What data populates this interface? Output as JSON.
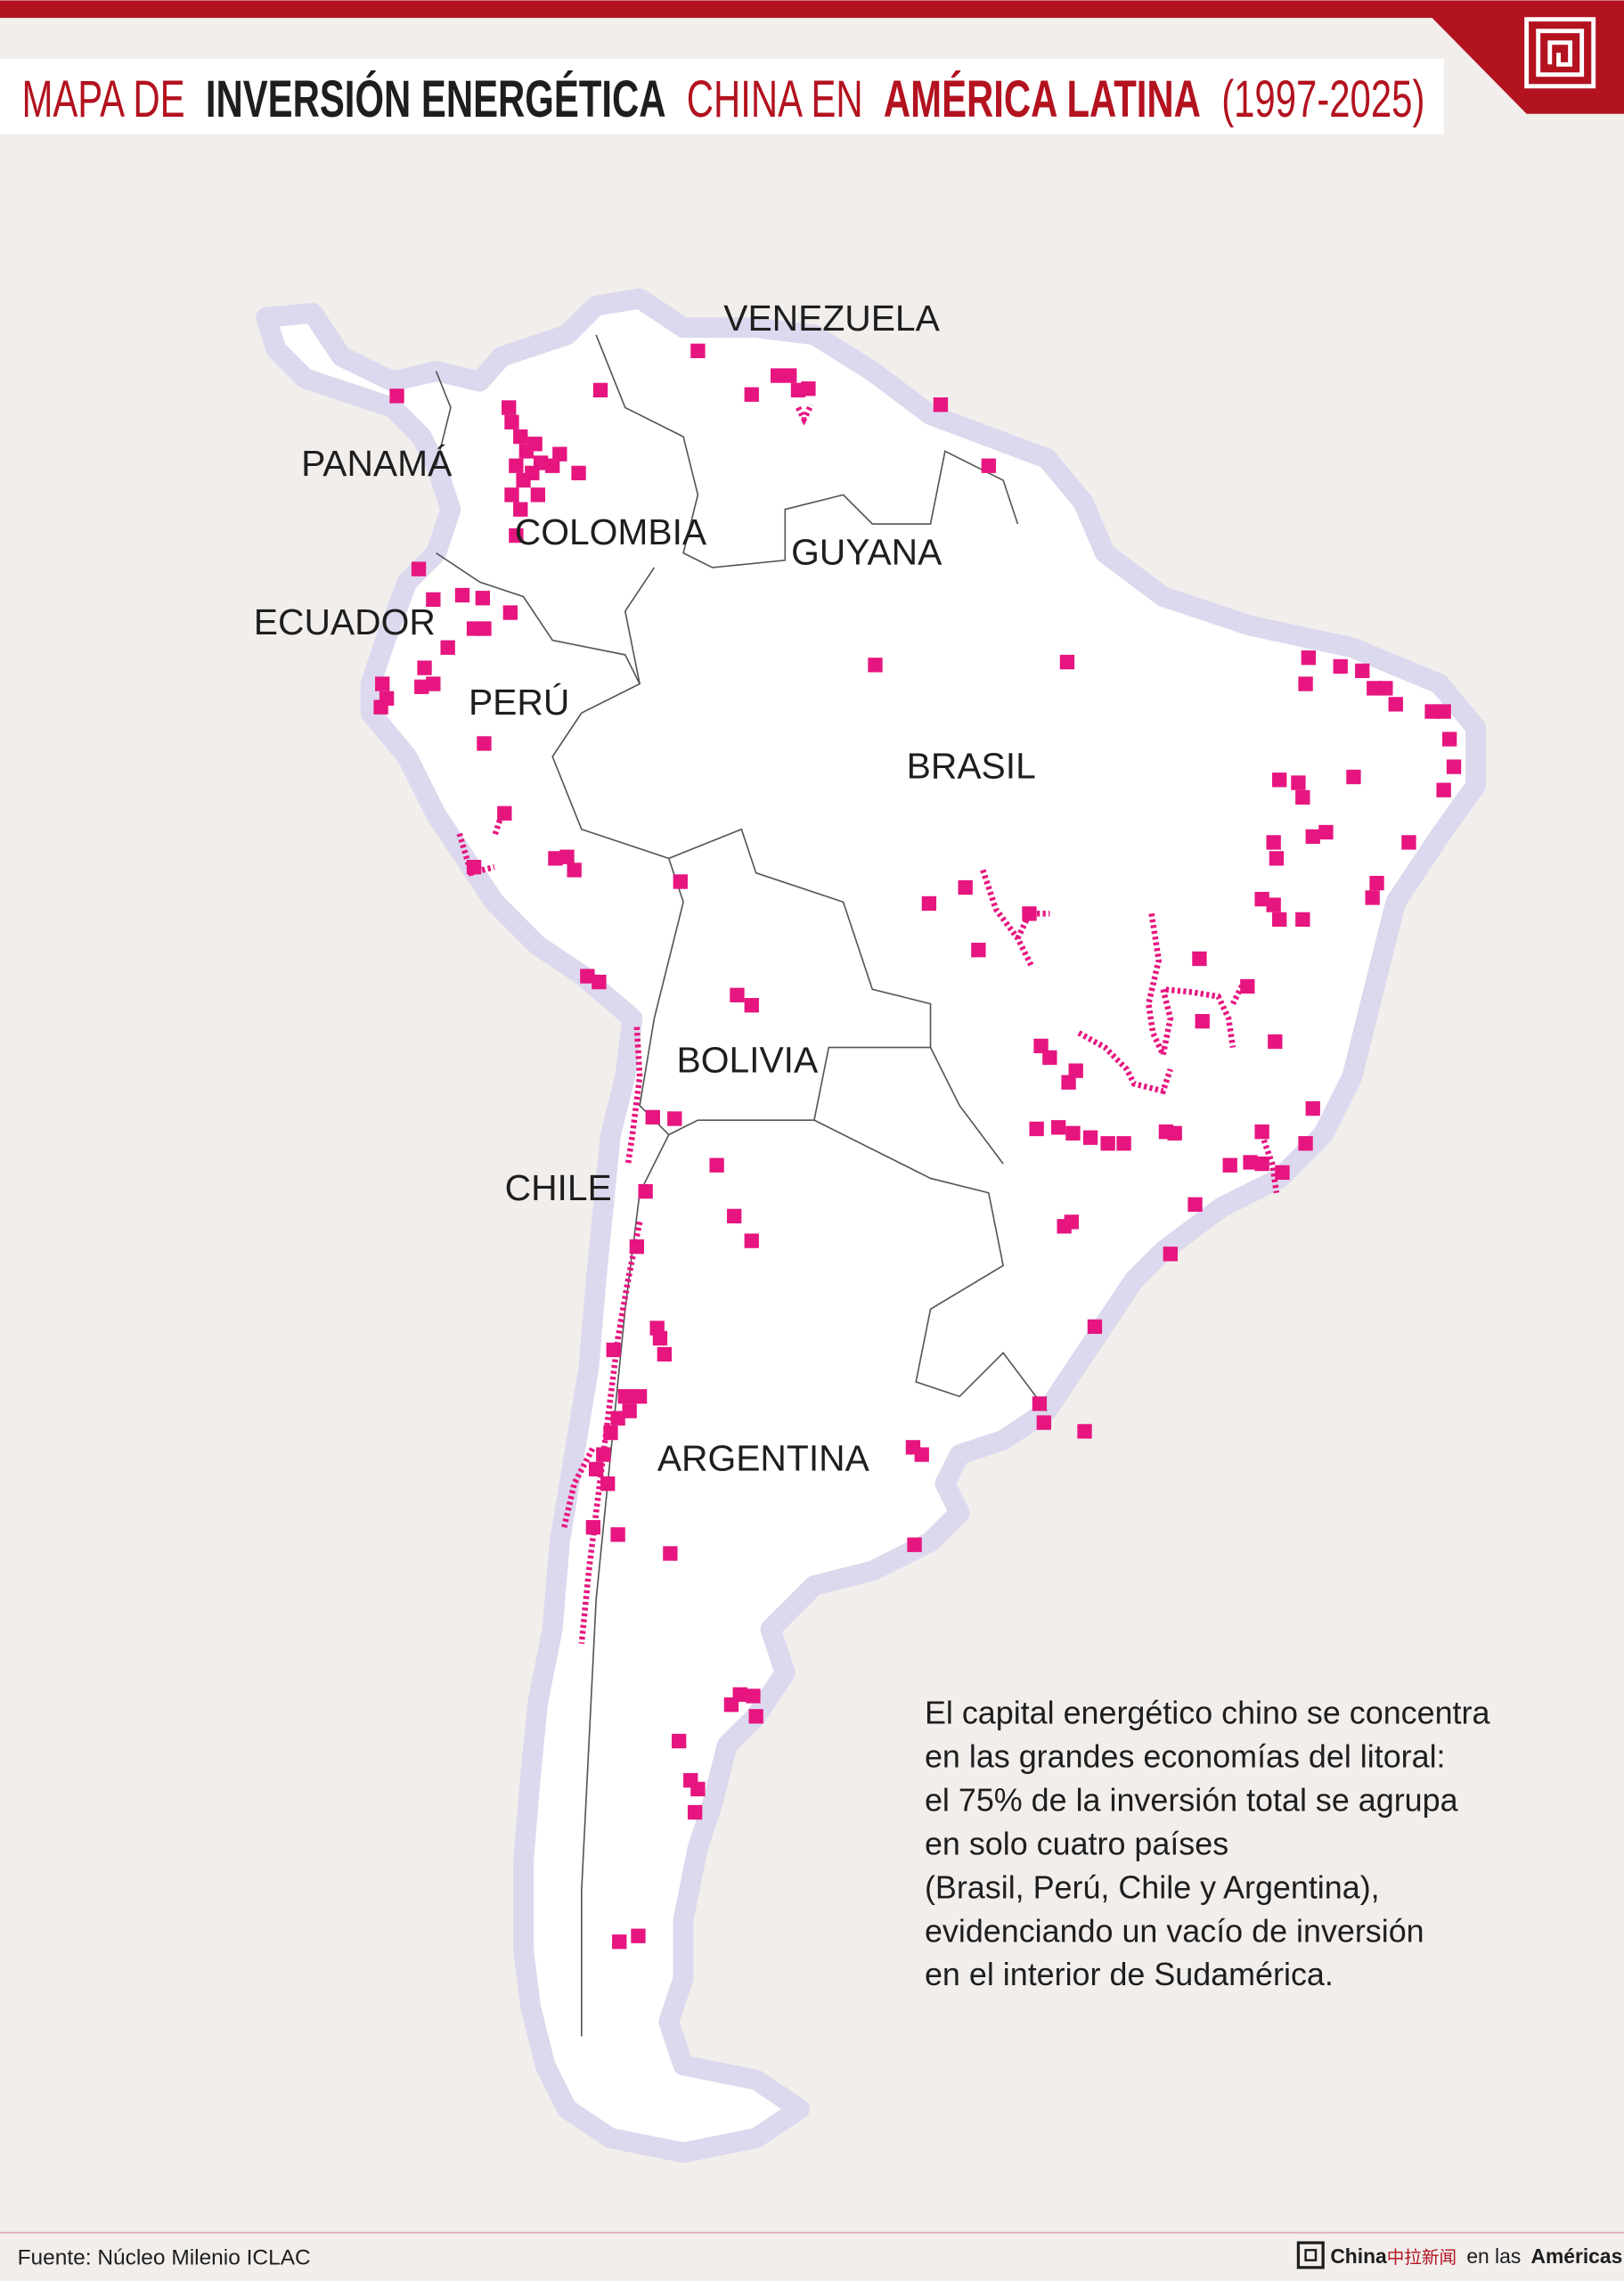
{
  "header": {
    "title_parts": [
      "MAPA DE",
      "INVERSIÓN ENERGÉTICA",
      "CHINA EN",
      "AMÉRICA LATINA",
      "(1997-2025)"
    ]
  },
  "map": {
    "country_labels": [
      "VENEZUELA",
      "PANAMÁ",
      "COLOMBIA",
      "ECUADOR",
      "PERÚ",
      "GUYANA",
      "BRASIL",
      "BOLIVIA",
      "CHILE",
      "ARGENTINA"
    ]
  },
  "annotation": {
    "lines": [
      "El capital energético chino se concentra",
      "en las grandes economías del litoral:",
      "el 75% de la inversión total se agrupa",
      "en solo cuatro países",
      "(Brasil, Perú, Chile y Argentina),",
      "evidenciando un vacío de inversión",
      "en el interior de Sudamérica."
    ]
  },
  "footer": {
    "source": "Fuente: Núcleo Milenio ICLAC",
    "brand_parts": [
      "China",
      "中拉新闻",
      "en las",
      "Américas"
    ]
  }
}
